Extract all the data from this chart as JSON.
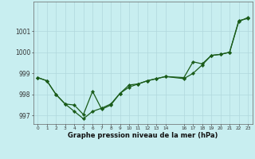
{
  "xlabel": "Graphe pression niveau de la mer (hPa)",
  "background_color": "#c8eef0",
  "grid_color": "#b0d8dc",
  "line_color": "#1a5c1a",
  "x_tick_labels": [
    "0",
    "1",
    "2",
    "3",
    "4",
    "5",
    "6",
    "7",
    "8",
    "9",
    "10",
    "11",
    "12",
    "13",
    "14",
    "16",
    "17",
    "18",
    "19",
    "20",
    "21",
    "22",
    "23"
  ],
  "x_positions": [
    0,
    1,
    2,
    3,
    4,
    5,
    6,
    7,
    8,
    9,
    10,
    11,
    12,
    13,
    14,
    16,
    17,
    18,
    19,
    20,
    21,
    22,
    23
  ],
  "ylim": [
    996.6,
    1002.4
  ],
  "y_ticks": [
    997,
    998,
    999,
    1000,
    1001
  ],
  "series1": {
    "x": [
      0,
      1,
      2,
      3,
      4,
      5,
      6,
      7,
      8,
      9,
      10,
      11,
      12,
      13,
      14,
      16,
      17,
      18,
      19,
      20,
      21,
      22,
      23
    ],
    "y": [
      998.8,
      998.65,
      998.0,
      997.55,
      997.2,
      996.85,
      997.2,
      997.35,
      997.55,
      998.05,
      998.35,
      998.5,
      998.65,
      998.75,
      998.85,
      998.8,
      999.55,
      999.45,
      999.85,
      999.9,
      1000.0,
      1001.5,
      1001.6
    ]
  },
  "series2": {
    "x": [
      0,
      1,
      2,
      3,
      4,
      5,
      6,
      7,
      8,
      9,
      10,
      11,
      12,
      13,
      14,
      16,
      17,
      18,
      19,
      20,
      21,
      22,
      23
    ],
    "y": [
      998.8,
      998.65,
      998.0,
      997.55,
      997.5,
      997.05,
      998.15,
      997.3,
      997.5,
      998.05,
      998.45,
      998.5,
      998.65,
      998.75,
      998.85,
      998.75,
      999.0,
      999.4,
      999.85,
      999.9,
      1000.0,
      1001.45,
      1001.65
    ]
  }
}
